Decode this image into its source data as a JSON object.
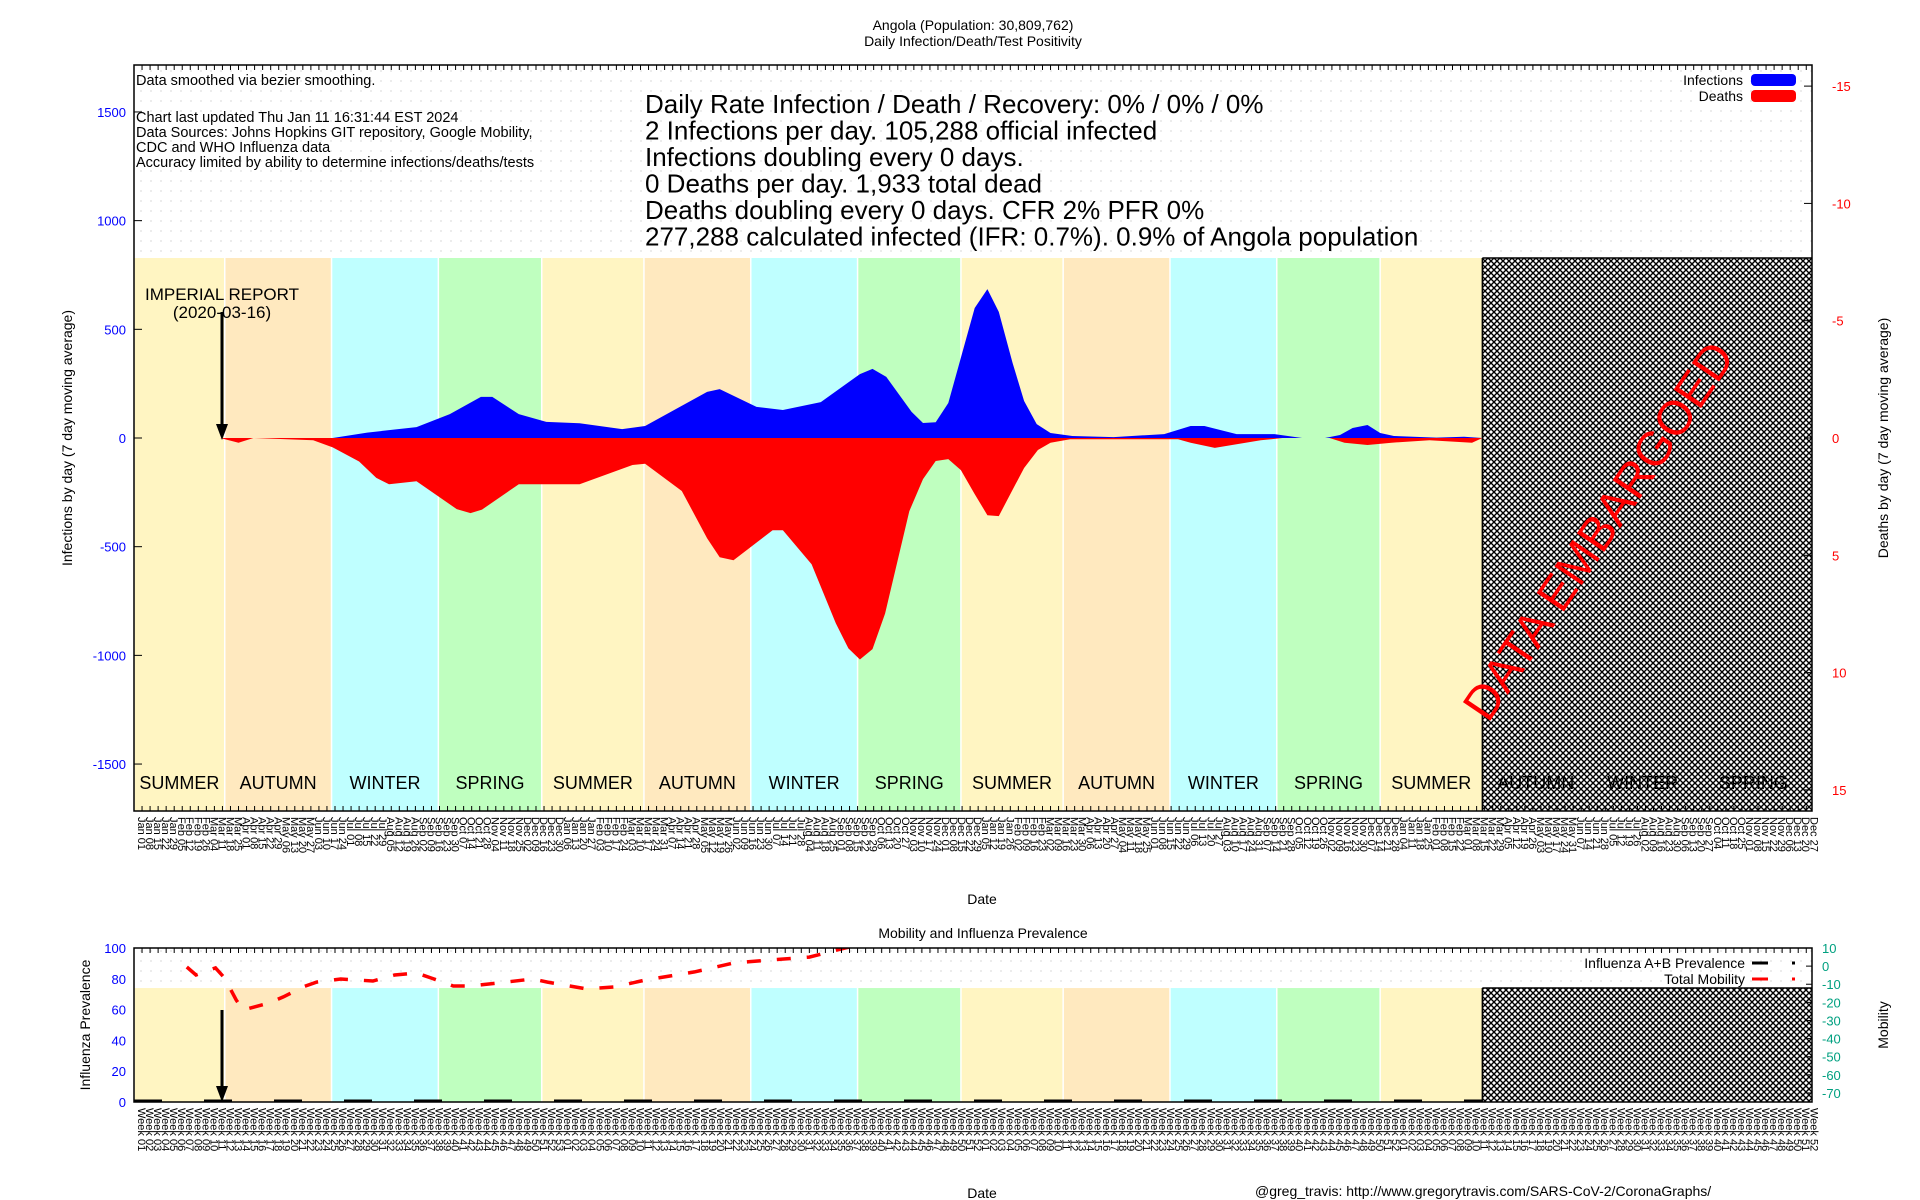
{
  "chart_data": [
    {
      "type": "area",
      "title": "Angola (Population: 30,809,762)",
      "subtitle": "Daily Infection/Death/Test Positivity",
      "xlabel": "Date",
      "ylabel": "Infections by day (7 day moving average)",
      "y2label": "Deaths by day (7 day moving average)",
      "xlim": [
        "2020-01-01",
        "2023-12-31"
      ],
      "ylim": [
        -1716,
        1716
      ],
      "y2lim": [
        -15.9,
        15.9
      ],
      "y_ticks": [
        -1500,
        -1000,
        -500,
        0,
        500,
        1000,
        1500
      ],
      "y2_ticks": [
        -15,
        -10,
        -5,
        0,
        5,
        10,
        15
      ],
      "x_tick_interval_days": 7,
      "grid": true,
      "legend_position": "top-right",
      "legend": [
        {
          "name": "Infections",
          "color": "#0000ff"
        },
        {
          "name": "Deaths",
          "color": "#ff0000"
        }
      ],
      "notes": [
        "Data smoothed via bezier smoothing.",
        "",
        "Chart last updated Thu Jan 11 16:31:44 EST 2024",
        "Data Sources: Johns Hopkins GIT repository, Google Mobility,",
        "CDC and WHO Influenza data",
        "Accuracy limited by ability to determine infections/deaths/tests"
      ],
      "stats": [
        "Daily Rate Infection / Death / Recovery: 0% / 0% / 0%",
        "2 Infections per day.  105,288 official infected",
        "Infections doubling every 0 days.",
        "0 Deaths per day.  1,933 total dead",
        "Deaths doubling every 0 days.  CFR 2%  PFR 0%",
        "277,288 calculated infected (IFR: 0.7%).  0.9% of Angola population"
      ],
      "annotation": {
        "label": "IMPERIAL REPORT",
        "date_label": "(2020-03-16)",
        "date": "2020-03-16"
      },
      "embargo": {
        "label": "DATA EMBARGOED",
        "start": "2023-03-20"
      },
      "seasons": [
        {
          "name": "SUMMER",
          "start": "2020-01-01",
          "end": "2020-03-20"
        },
        {
          "name": "AUTUMN",
          "start": "2020-03-20",
          "end": "2020-06-21"
        },
        {
          "name": "WINTER",
          "start": "2020-06-21",
          "end": "2020-09-22"
        },
        {
          "name": "SPRING",
          "start": "2020-09-22",
          "end": "2020-12-21"
        },
        {
          "name": "SUMMER",
          "start": "2020-12-21",
          "end": "2021-03-20"
        },
        {
          "name": "AUTUMN",
          "start": "2021-03-20",
          "end": "2021-06-21"
        },
        {
          "name": "WINTER",
          "start": "2021-06-21",
          "end": "2021-09-22"
        },
        {
          "name": "SPRING",
          "start": "2021-09-22",
          "end": "2021-12-21"
        },
        {
          "name": "SUMMER",
          "start": "2021-12-21",
          "end": "2022-03-20"
        },
        {
          "name": "AUTUMN",
          "start": "2022-03-20",
          "end": "2022-06-21"
        },
        {
          "name": "WINTER",
          "start": "2022-06-21",
          "end": "2022-09-22"
        },
        {
          "name": "SPRING",
          "start": "2022-09-22",
          "end": "2022-12-21"
        },
        {
          "name": "SUMMER",
          "start": "2022-12-21",
          "end": "2023-03-20"
        },
        {
          "name": "AUTUMN",
          "start": "2023-03-20",
          "end": "2023-06-21"
        },
        {
          "name": "WINTER",
          "start": "2023-06-21",
          "end": "2023-09-22"
        },
        {
          "name": "SPRING",
          "start": "2023-09-22",
          "end": "2023-12-31"
        }
      ],
      "season_colors": {
        "SUMMER": "#fff5c2",
        "AUTUMN": "#ffe9bf",
        "WINTER": "#bfffff",
        "SPRING": "#bfffbf"
      },
      "series": [
        {
          "name": "Infections",
          "color": "#0000ff",
          "axis": "y",
          "points": [
            [
              "2020-03-16",
              0
            ],
            [
              "2020-06-22",
              0
            ],
            [
              "2020-07-22",
              25
            ],
            [
              "2020-09-03",
              50
            ],
            [
              "2020-10-02",
              110
            ],
            [
              "2020-10-29",
              189
            ],
            [
              "2020-11-08",
              189
            ],
            [
              "2020-12-01",
              110
            ],
            [
              "2020-12-25",
              74
            ],
            [
              "2021-01-23",
              68
            ],
            [
              "2021-03-01",
              41
            ],
            [
              "2021-03-21",
              55
            ],
            [
              "2021-05-14",
              212
            ],
            [
              "2021-05-25",
              225
            ],
            [
              "2021-06-26",
              143
            ],
            [
              "2021-07-19",
              129
            ],
            [
              "2021-08-21",
              165
            ],
            [
              "2021-09-24",
              294
            ],
            [
              "2021-10-05",
              318
            ],
            [
              "2021-10-17",
              281
            ],
            [
              "2021-11-08",
              120
            ],
            [
              "2021-11-18",
              69
            ],
            [
              "2021-11-29",
              72
            ],
            [
              "2021-12-10",
              161
            ],
            [
              "2022-01-02",
              598
            ],
            [
              "2022-01-13",
              685
            ],
            [
              "2022-01-23",
              580
            ],
            [
              "2022-02-04",
              345
            ],
            [
              "2022-02-14",
              170
            ],
            [
              "2022-02-25",
              64
            ],
            [
              "2022-03-09",
              23
            ],
            [
              "2022-03-28",
              9
            ],
            [
              "2022-05-03",
              4
            ],
            [
              "2022-06-16",
              18
            ],
            [
              "2022-07-09",
              55
            ],
            [
              "2022-07-21",
              55
            ],
            [
              "2022-08-18",
              18
            ],
            [
              "2022-09-20",
              18
            ],
            [
              "2022-10-14",
              0
            ],
            [
              "2022-11-03",
              0
            ],
            [
              "2022-11-16",
              14
            ],
            [
              "2022-11-27",
              46
            ],
            [
              "2022-12-10",
              60
            ],
            [
              "2022-12-21",
              23
            ],
            [
              "2023-01-02",
              9
            ],
            [
              "2023-02-08",
              2
            ],
            [
              "2023-03-04",
              6
            ],
            [
              "2023-03-20",
              0
            ]
          ]
        },
        {
          "name": "Deaths",
          "color": "#ff0000",
          "axis": "y2",
          "points": [
            [
              "2020-03-16",
              0
            ],
            [
              "2020-04-01",
              0.2
            ],
            [
              "2020-04-14",
              0
            ],
            [
              "2020-06-05",
              0.1
            ],
            [
              "2020-06-22",
              0.4
            ],
            [
              "2020-07-15",
              1.0
            ],
            [
              "2020-07-30",
              1.7
            ],
            [
              "2020-08-10",
              1.97
            ],
            [
              "2020-09-03",
              1.84
            ],
            [
              "2020-10-08",
              3.03
            ],
            [
              "2020-10-20",
              3.2
            ],
            [
              "2020-10-30",
              3.05
            ],
            [
              "2020-12-01",
              1.97
            ],
            [
              "2021-01-23",
              1.97
            ],
            [
              "2021-03-10",
              1.15
            ],
            [
              "2021-03-21",
              1.1
            ],
            [
              "2021-04-22",
              2.26
            ],
            [
              "2021-05-14",
              4.27
            ],
            [
              "2021-05-25",
              5.08
            ],
            [
              "2021-06-06",
              5.21
            ],
            [
              "2021-07-10",
              3.93
            ],
            [
              "2021-07-19",
              3.93
            ],
            [
              "2021-08-13",
              5.38
            ],
            [
              "2021-09-03",
              7.9
            ],
            [
              "2021-09-14",
              8.97
            ],
            [
              "2021-09-24",
              9.44
            ],
            [
              "2021-10-05",
              9.0
            ],
            [
              "2021-10-16",
              7.48
            ],
            [
              "2021-11-06",
              3.12
            ],
            [
              "2021-11-18",
              1.75
            ],
            [
              "2021-11-29",
              0.98
            ],
            [
              "2021-12-10",
              0.9
            ],
            [
              "2021-12-21",
              1.37
            ],
            [
              "2022-01-02",
              2.39
            ],
            [
              "2022-01-13",
              3.29
            ],
            [
              "2022-01-23",
              3.33
            ],
            [
              "2022-02-02",
              2.39
            ],
            [
              "2022-02-14",
              1.28
            ],
            [
              "2022-02-26",
              0.51
            ],
            [
              "2022-03-09",
              0.2
            ],
            [
              "2022-03-26",
              0.05
            ],
            [
              "2022-06-28",
              0.05
            ],
            [
              "2022-07-09",
              0.2
            ],
            [
              "2022-07-30",
              0.42
            ],
            [
              "2022-08-18",
              0.27
            ],
            [
              "2022-09-08",
              0.1
            ],
            [
              "2022-09-27",
              0
            ],
            [
              "2022-11-07",
              0
            ],
            [
              "2022-11-20",
              0.2
            ],
            [
              "2022-12-10",
              0.3
            ],
            [
              "2022-12-31",
              0.2
            ],
            [
              "2023-02-02",
              0.1
            ],
            [
              "2023-03-11",
              0.2
            ],
            [
              "2023-03-20",
              0
            ]
          ]
        }
      ]
    },
    {
      "type": "line",
      "title": "Mobility and Influenza Prevalence",
      "xlabel": "Date",
      "ylabel": "Influenza Prevalence",
      "y2label": "Mobility",
      "ylim": [
        0,
        100
      ],
      "y2lim": [
        -75,
        10
      ],
      "y_ticks": [
        0,
        20,
        40,
        60,
        80,
        100
      ],
      "y2_ticks": [
        10,
        0,
        -10,
        -20,
        -30,
        -40,
        -50,
        -60,
        -70
      ],
      "x_tick_label_prefix": "Week",
      "grid": true,
      "legend_position": "top-right",
      "legend": [
        {
          "name": "Influenza A+B Prevalence",
          "color": "#000000"
        },
        {
          "name": "Total Mobility",
          "color": "#ff0000"
        }
      ],
      "band_top_value": 74,
      "series": [
        {
          "name": "Influenza A+B Prevalence",
          "color": "#000000",
          "axis": "y",
          "style": "dashed",
          "points": [
            [
              "2020-01-01",
              0
            ],
            [
              "2023-12-31",
              0
            ]
          ]
        },
        {
          "name": "Total Mobility",
          "color": "#ff0000",
          "axis": "y2",
          "style": "dashed",
          "points": [
            [
              "2020-02-16",
              -0.5
            ],
            [
              "2020-02-24",
              -4.9
            ],
            [
              "2020-03-12",
              -1
            ],
            [
              "2020-03-20",
              -6.6
            ],
            [
              "2020-03-30",
              -18.7
            ],
            [
              "2020-04-05",
              -24.2
            ],
            [
              "2020-04-28",
              -20.3
            ],
            [
              "2020-05-10",
              -17
            ],
            [
              "2020-05-27",
              -11.5
            ],
            [
              "2020-06-08",
              -8.8
            ],
            [
              "2020-06-29",
              -7.1
            ],
            [
              "2020-07-27",
              -8.2
            ],
            [
              "2020-08-15",
              -4.9
            ],
            [
              "2020-09-03",
              -3.8
            ],
            [
              "2020-09-16",
              -6.6
            ],
            [
              "2020-10-05",
              -11
            ],
            [
              "2020-10-20",
              -11
            ],
            [
              "2020-11-13",
              -9.3
            ],
            [
              "2020-12-13",
              -7.1
            ],
            [
              "2020-12-26",
              -8.8
            ],
            [
              "2021-01-29",
              -12.6
            ],
            [
              "2021-02-22",
              -11.5
            ],
            [
              "2021-03-21",
              -7.7
            ],
            [
              "2021-05-03",
              -3.2
            ],
            [
              "2021-06-06",
              1.7
            ],
            [
              "2021-07-08",
              3.4
            ],
            [
              "2021-08-11",
              5
            ],
            [
              "2021-09-11",
              10
            ],
            [
              "2021-09-25",
              12
            ]
          ]
        }
      ]
    }
  ],
  "footer": {
    "credit": "@greg_travis: http://www.gregorytravis.com/SARS-CoV-2/CoronaGraphs/"
  }
}
